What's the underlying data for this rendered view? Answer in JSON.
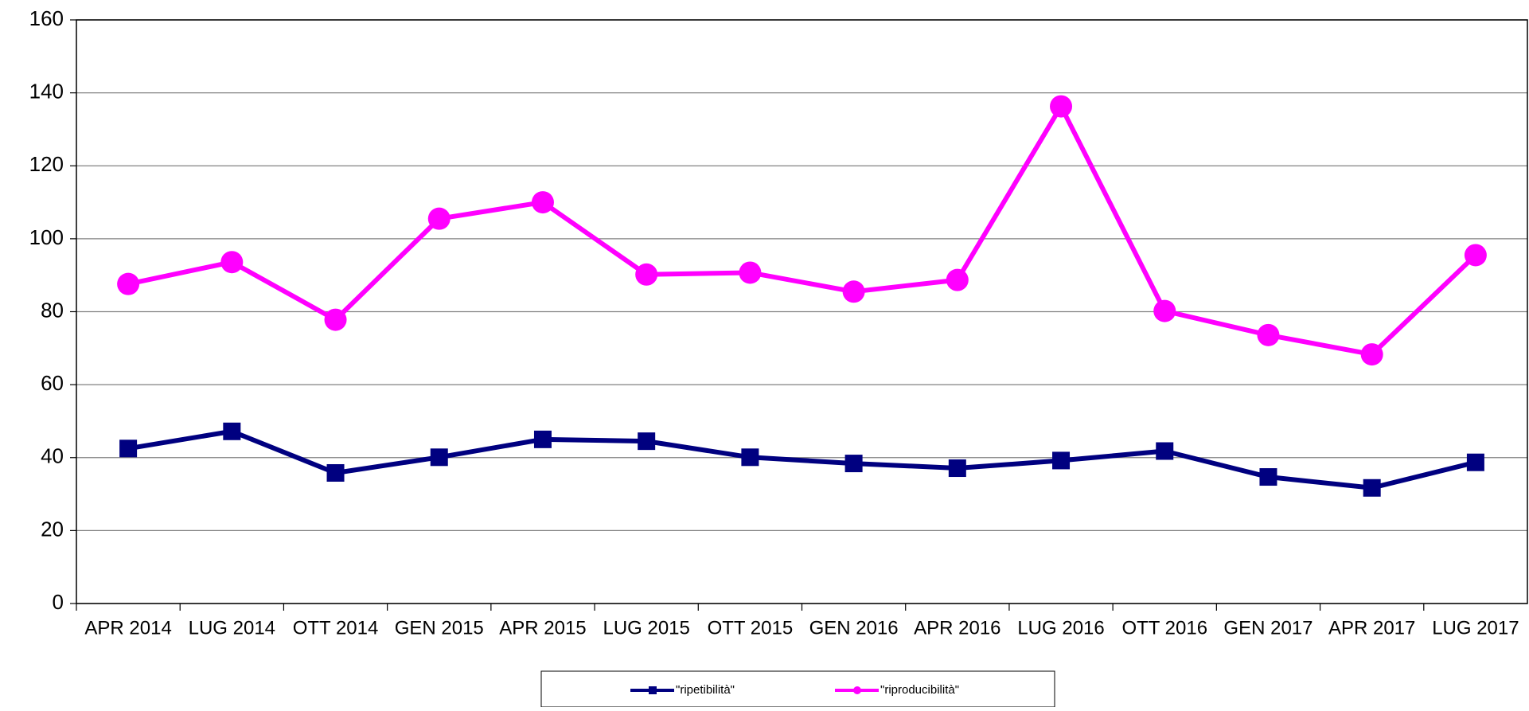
{
  "chart_data": {
    "type": "line",
    "categories": [
      "APR 2014",
      "LUG 2014",
      "OTT 2014",
      "GEN 2015",
      "APR 2015",
      "LUG 2015",
      "OTT 2015",
      "GEN 2016",
      "APR 2016",
      "LUG 2016",
      "OTT 2016",
      "GEN 2017",
      "APR 2017",
      "LUG 2017"
    ],
    "series": [
      {
        "name": "\"ripetibilità\"",
        "color": "#000080",
        "marker": "square",
        "values": [
          42.5,
          47.2,
          35.8,
          40.1,
          45,
          44.5,
          40.1,
          38.4,
          37.1,
          39.2,
          41.8,
          34.7,
          31.7,
          38.7
        ]
      },
      {
        "name": "\"riproducibilità\"",
        "color": "#ff00ff",
        "marker": "circle",
        "values": [
          87.6,
          93.6,
          77.8,
          105.5,
          110,
          90.2,
          90.7,
          85.5,
          88.7,
          136.3,
          80.2,
          73.6,
          68.3,
          95.5
        ]
      }
    ],
    "ylim": [
      0,
      160
    ],
    "yticks": [
      0,
      20,
      40,
      60,
      80,
      100,
      120,
      140,
      160
    ],
    "grid": true,
    "legend": "bottom"
  }
}
